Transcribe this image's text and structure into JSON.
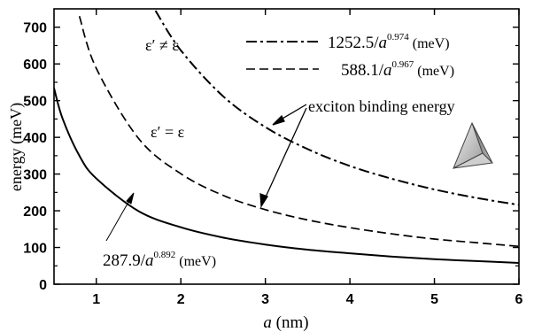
{
  "chart_data": {
    "type": "line",
    "xlabel_var": "a",
    "xlabel_unit": " (nm)",
    "ylabel": "energy (meV)",
    "xlim": [
      0.5,
      6
    ],
    "ylim": [
      0,
      750
    ],
    "xticks": [
      1,
      2,
      3,
      4,
      5,
      6
    ],
    "yticks": [
      0,
      100,
      200,
      300,
      400,
      500,
      600,
      700
    ],
    "grid": false,
    "series": [
      {
        "name": "1252.5/a^0.974 (meV)",
        "coef": "1252.5/",
        "var": "a",
        "exp": "0.974",
        "unit": " (meV)",
        "style": "dashdot",
        "values": [
          [
            1.7,
            745
          ],
          [
            2,
            637
          ],
          [
            2.5,
            512
          ],
          [
            3,
            428
          ],
          [
            3.5,
            368
          ],
          [
            4,
            322
          ],
          [
            4.5,
            287
          ],
          [
            5,
            258
          ],
          [
            5.5,
            235
          ],
          [
            6,
            216
          ]
        ]
      },
      {
        "name": "588.1/a^0.967 (meV)",
        "coef": "588.1/",
        "var": "a",
        "exp": "0.967",
        "unit": " (meV)",
        "style": "dash",
        "values": [
          [
            0.8,
            730
          ],
          [
            1,
            588
          ],
          [
            1.5,
            397
          ],
          [
            2,
            301
          ],
          [
            2.5,
            242
          ],
          [
            3,
            203
          ],
          [
            3.5,
            175
          ],
          [
            4,
            154
          ],
          [
            4.5,
            137
          ],
          [
            5,
            123
          ],
          [
            5.5,
            113
          ],
          [
            6,
            103
          ]
        ]
      },
      {
        "name": "287.9/a^0.892 (meV)",
        "coef": "287.9/",
        "var": "a",
        "exp": "0.892",
        "unit": " (meV)",
        "style": "solid",
        "values": [
          [
            0.5,
            534
          ],
          [
            0.6,
            452
          ],
          [
            0.8,
            350
          ],
          [
            1,
            288
          ],
          [
            1.5,
            199
          ],
          [
            2,
            155
          ],
          [
            2.5,
            127
          ],
          [
            3,
            108
          ],
          [
            3.5,
            94
          ],
          [
            4,
            84
          ],
          [
            4.5,
            75
          ],
          [
            5,
            68
          ],
          [
            5.5,
            63
          ],
          [
            6,
            58
          ]
        ]
      }
    ],
    "annotations": {
      "eps_neq": "ε′ ≠ ε",
      "eps_eq": "ε′ = ε",
      "exciton": "exciton binding energy"
    },
    "inset_icon": "tetrahedron-icon"
  }
}
